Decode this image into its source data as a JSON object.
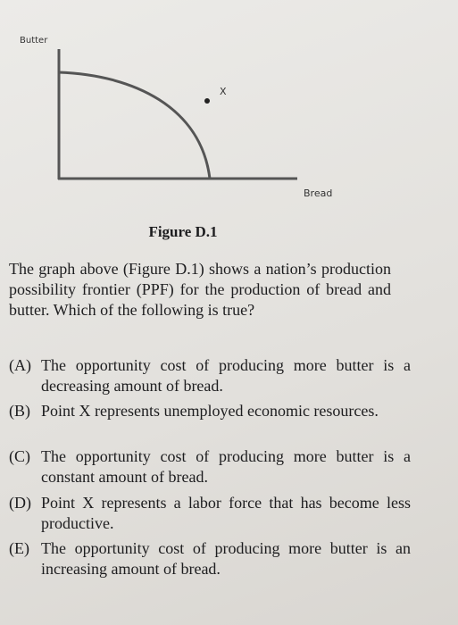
{
  "figure": {
    "y_axis_label": "Butter",
    "x_axis_label": "Bread",
    "point_label": "X",
    "caption": "Figure D.1"
  },
  "question": "The graph above (Figure D.1) shows a nation’s production possibility frontier (PPF) for the production of bread and butter. Which of the following is true?",
  "options": [
    {
      "letter": "(A)",
      "text": "The opportunity cost of producing more butter is a decreasing amount of bread."
    },
    {
      "letter": "(B)",
      "text": "Point X represents unemployed economic resources."
    },
    {
      "letter": "(C)",
      "text": "The opportunity cost of producing more butter is a constant amount of bread."
    },
    {
      "letter": "(D)",
      "text": "Point X represents a labor force that has become less productive."
    },
    {
      "letter": "(E)",
      "text": "The opportunity cost of producing more butter is an increasing amount of bread."
    }
  ]
}
